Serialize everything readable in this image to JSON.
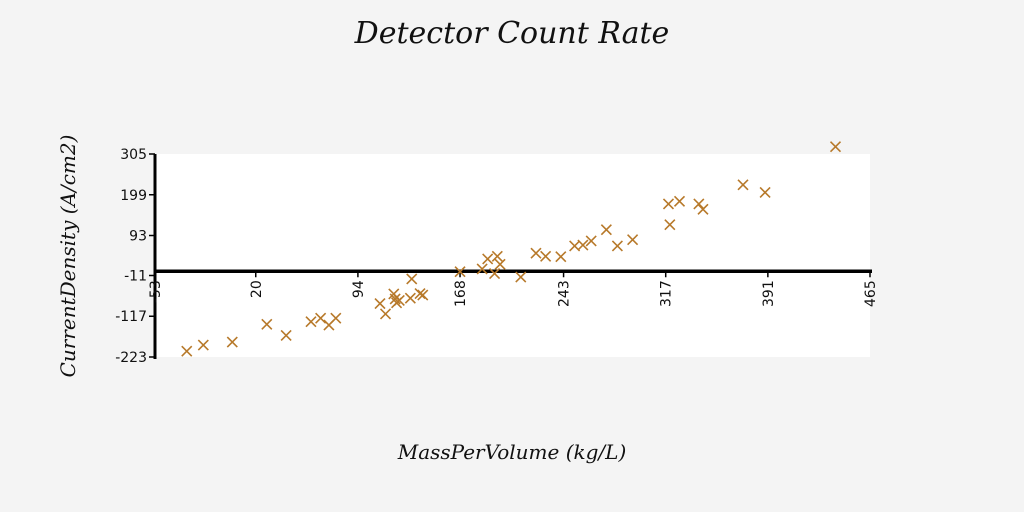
{
  "chart_data": {
    "type": "scatter",
    "title": "Detector Count Rate",
    "xlabel": "MassPerVolume (kg/L)",
    "ylabel": "CurrentDensity (A/cm2)",
    "xlim": [
      -53,
      465
    ],
    "ylim": [
      -223,
      305
    ],
    "x_ticks": [
      "-53",
      "20",
      "94",
      "168",
      "243",
      "317",
      "391",
      "465"
    ],
    "y_ticks": [
      "305",
      "199",
      "93",
      "-11",
      "-117",
      "-223"
    ],
    "x_tick_values": [
      -53,
      20,
      94,
      168,
      243,
      317,
      391,
      465
    ],
    "y_tick_values": [
      305,
      199,
      93,
      -11,
      -117,
      -223
    ],
    "marker": "x",
    "color": "#b7792a",
    "grid": false,
    "series": [
      {
        "points": [
          [
            -30,
            -208
          ],
          [
            -18,
            -192
          ],
          [
            3,
            -184
          ],
          [
            28,
            -138
          ],
          [
            42,
            -167
          ],
          [
            60,
            -131
          ],
          [
            67,
            -122
          ],
          [
            73,
            -140
          ],
          [
            78,
            -122
          ],
          [
            110,
            -84
          ],
          [
            114,
            -111
          ],
          [
            120,
            -59
          ],
          [
            121,
            -72
          ],
          [
            122,
            -82
          ],
          [
            124,
            -76
          ],
          [
            132,
            -70
          ],
          [
            133,
            -20
          ],
          [
            139,
            -58
          ],
          [
            141,
            -62
          ],
          [
            168,
            -1
          ],
          [
            184,
            6
          ],
          [
            188,
            32
          ],
          [
            193,
            -6
          ],
          [
            195,
            39
          ],
          [
            197,
            18
          ],
          [
            212,
            -15
          ],
          [
            223,
            47
          ],
          [
            230,
            39
          ],
          [
            241,
            38
          ],
          [
            251,
            66
          ],
          [
            257,
            68
          ],
          [
            263,
            79
          ],
          [
            274,
            108
          ],
          [
            282,
            66
          ],
          [
            293,
            82
          ],
          [
            319,
            175
          ],
          [
            320,
            121
          ],
          [
            327,
            182
          ],
          [
            341,
            175
          ],
          [
            344,
            161
          ],
          [
            373,
            225
          ],
          [
            389,
            205
          ],
          [
            440,
            324
          ]
        ]
      }
    ]
  }
}
